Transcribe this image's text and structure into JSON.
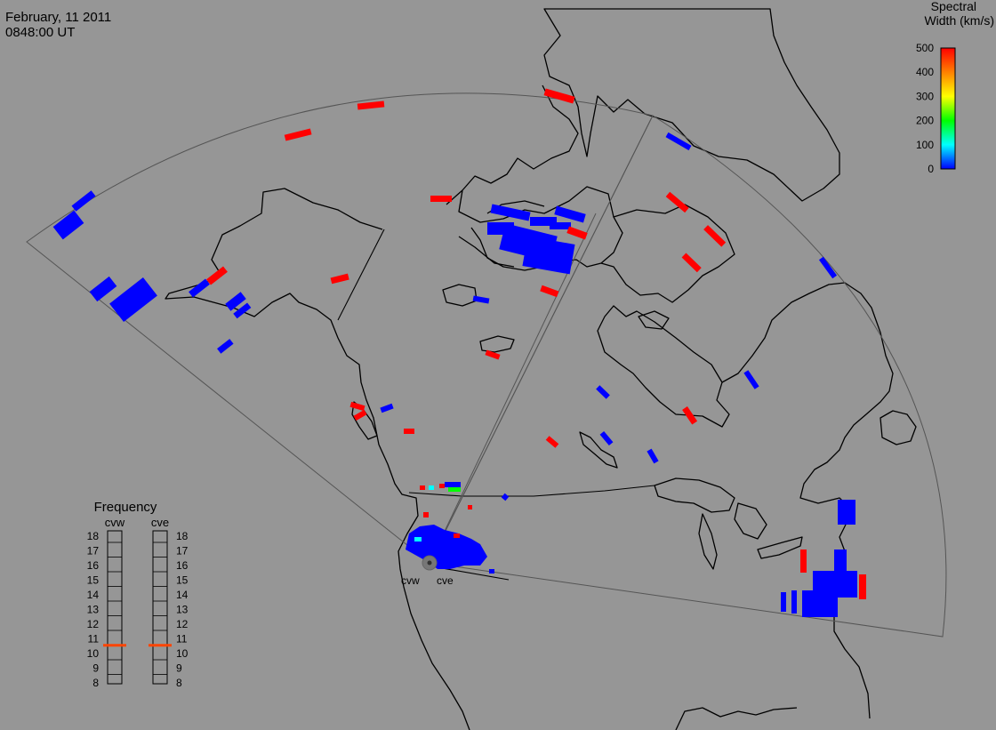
{
  "header": {
    "date": "February, 11 2011",
    "time": "0848:00 UT"
  },
  "colorbar": {
    "title_line1": "Spectral",
    "title_line2": "Width (km/s)",
    "ticks": [
      "500",
      "400",
      "300",
      "200",
      "100",
      "0"
    ],
    "min": 0,
    "max": 500,
    "colors": [
      "#ff0000",
      "#ff8000",
      "#ffff00",
      "#00ff00",
      "#00ffff",
      "#0000ff"
    ]
  },
  "frequency": {
    "title": "Frequency",
    "cvw_label": "cvw",
    "cve_label": "cve",
    "scale": [
      "18",
      "17",
      "16",
      "15",
      "14",
      "13",
      "12",
      "11",
      "10",
      "9",
      "8"
    ],
    "cvw_value_mhz": 10.5,
    "cve_value_mhz": 10.5,
    "marker_color": "#ff4400"
  },
  "radars": {
    "west": "cvw",
    "east": "cve"
  },
  "colors": {
    "background": "#969696",
    "low_width": "#0000ff",
    "high_width": "#ff0000",
    "coast": "#000000"
  }
}
